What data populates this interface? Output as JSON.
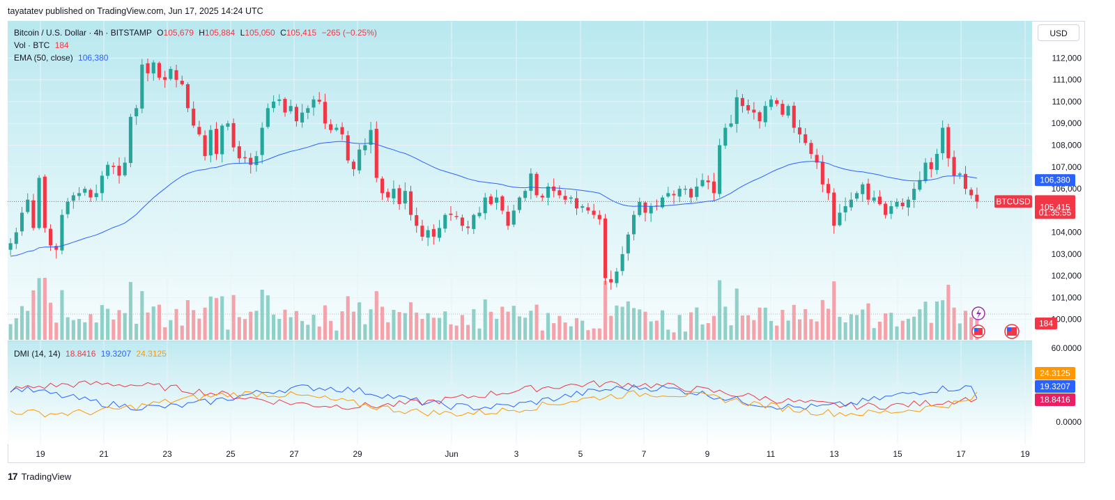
{
  "header": {
    "published": "tayatatev published on TradingView.com, Jun 17, 2025 14:24 UTC"
  },
  "legend": {
    "symbol": "Bitcoin / U.S. Dollar · 4h · BITSTAMP",
    "o_label": "O",
    "o": "105,679",
    "h_label": "H",
    "h": "105,884",
    "l_label": "L",
    "l": "105,050",
    "c_label": "C",
    "c": "105,415",
    "change": "−265 (−0.25%)",
    "vol_label": "Vol · BTC",
    "vol": "184",
    "ema_label": "EMA (50, close)",
    "ema": "106,380",
    "dmi_label": "DMI (14, 14)",
    "dmi_minus": "18.8416",
    "dmi_plus": "19.3207",
    "adx": "24.3125"
  },
  "currency_button": "USD",
  "footer": {
    "brand": "TradingView"
  },
  "colors": {
    "up": "#26a69a",
    "down": "#f23645",
    "ema": "#2962ff",
    "adx": "#ff9800",
    "dmi_minus": "#f23645",
    "dmi_plus": "#2962ff",
    "grid": "#e9f3f6",
    "bg_top": "#b8e8f0",
    "bg_bottom": "#ffffff"
  },
  "chart_data": {
    "type": "candlestick",
    "interval": "4h",
    "x_ticks": [
      "19",
      "21",
      "23",
      "25",
      "27",
      "29",
      "Jun",
      "3",
      "5",
      "7",
      "9",
      "11",
      "13",
      "15",
      "17",
      "19"
    ],
    "y_ticks": [
      "112,000",
      "111,000",
      "110,000",
      "109,000",
      "108,000",
      "107,000",
      "106,000",
      "104,000",
      "103,000",
      "102,000",
      "101,000",
      "100,000"
    ],
    "ylim": [
      99800,
      112300
    ],
    "last_price": {
      "value": 105415,
      "label": "105,415",
      "symbol": "BTCUSD",
      "countdown": "01:35:55"
    },
    "ema": {
      "value": 106380,
      "label": "106,380"
    },
    "volume_label": "184",
    "closes": [
      103500,
      104000,
      104900,
      105500,
      104200,
      106500,
      104200,
      103400,
      103200,
      104800,
      105400,
      105700,
      105800,
      106000,
      105600,
      105800,
      106600,
      107100,
      107000,
      106600,
      107200,
      109300,
      109700,
      111700,
      111300,
      111800,
      111100,
      111000,
      111500,
      111000,
      110800,
      109700,
      108900,
      108500,
      107500,
      108700,
      107600,
      108900,
      109000,
      107900,
      107400,
      107400,
      107100,
      107500,
      108800,
      109700,
      110000,
      110100,
      109500,
      109800,
      109100,
      109500,
      109700,
      110100,
      110000,
      109000,
      108700,
      108800,
      108500,
      107300,
      106900,
      107800,
      108000,
      108700,
      106500,
      105800,
      105600,
      106000,
      105300,
      105900,
      104800,
      104300,
      103800,
      104100,
      103800,
      104200,
      104800,
      104800,
      104700,
      104300,
      104200,
      104800,
      104900,
      105600,
      105300,
      105600,
      105000,
      104300,
      105000,
      105600,
      105900,
      106700,
      105700,
      105600,
      106100,
      105900,
      105700,
      105500,
      105600,
      105100,
      105200,
      105000,
      104800,
      104600,
      101900,
      101700,
      102200,
      103000,
      103900,
      104800,
      105400,
      104900,
      105200,
      105200,
      105600,
      105800,
      105700,
      106000,
      106000,
      105600,
      106100,
      106400,
      106300,
      105800,
      108000,
      108800,
      109000,
      110200,
      109800,
      109600,
      109500,
      109100,
      109800,
      110100,
      109900,
      109400,
      109800,
      108800,
      108500,
      108100,
      107600,
      107200,
      106200,
      105800,
      104300,
      104900,
      105200,
      105500,
      105800,
      106200,
      105500,
      105600,
      105300,
      104800,
      105200,
      105400,
      105200,
      105500,
      106000,
      106400,
      107200,
      106900,
      107600,
      108800,
      107400,
      106600,
      106700,
      106000,
      105700,
      105415
    ],
    "volume_units": "BTC",
    "dmi": {
      "dmi_minus": 18.8416,
      "dmi_plus": 19.3207,
      "adx": 24.3125,
      "ylim": [
        0,
        60
      ],
      "y_ticks": [
        "60.0000",
        "0.0000"
      ]
    }
  }
}
